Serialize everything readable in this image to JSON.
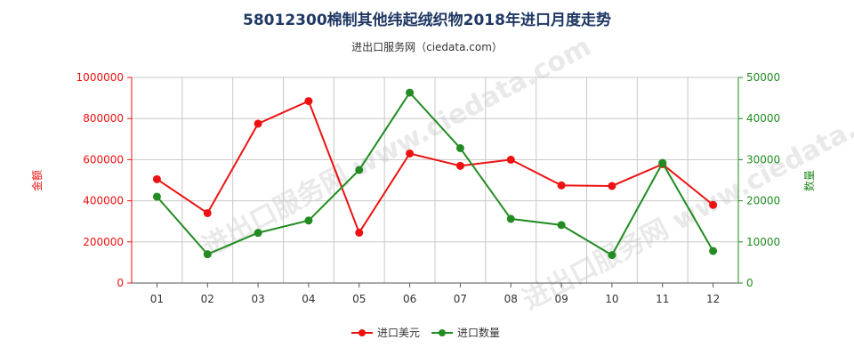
{
  "header": {
    "title": "58012300棉制其他纬起绒织物2018年进口月度走势",
    "subtitle": "进出口服务网（ciedata.com）"
  },
  "watermark": "进出口服务网 www.ciedata.com",
  "colors": {
    "value_series": "#ee1111",
    "quantity_series": "#228b22",
    "grid": "#c8c8c8",
    "axis": "#555555",
    "title": "#1f3864"
  },
  "chart_data": {
    "type": "line",
    "categories": [
      "01",
      "02",
      "03",
      "04",
      "05",
      "06",
      "07",
      "08",
      "09",
      "10",
      "11",
      "12"
    ],
    "ylabel_left": "金额",
    "ylabel_right": "数量",
    "ylim_left": [
      0,
      1000000
    ],
    "ylim_right": [
      0,
      50000
    ],
    "yticks_left": [
      "0",
      "200000",
      "400000",
      "600000",
      "800000",
      "1000000"
    ],
    "yticks_right": [
      "0",
      "10000",
      "20000",
      "30000",
      "40000",
      "50000"
    ],
    "grid": true,
    "legend_position": "bottom",
    "series": [
      {
        "name": "进口美元",
        "axis": "left",
        "values": [
          505000,
          340000,
          775000,
          885000,
          245000,
          630000,
          570000,
          600000,
          475000,
          472000,
          578000,
          380000
        ]
      },
      {
        "name": "进口数量",
        "axis": "right",
        "values": [
          21000,
          7000,
          12200,
          15200,
          27500,
          46300,
          32800,
          15600,
          14100,
          6800,
          29200,
          7800
        ]
      }
    ]
  }
}
